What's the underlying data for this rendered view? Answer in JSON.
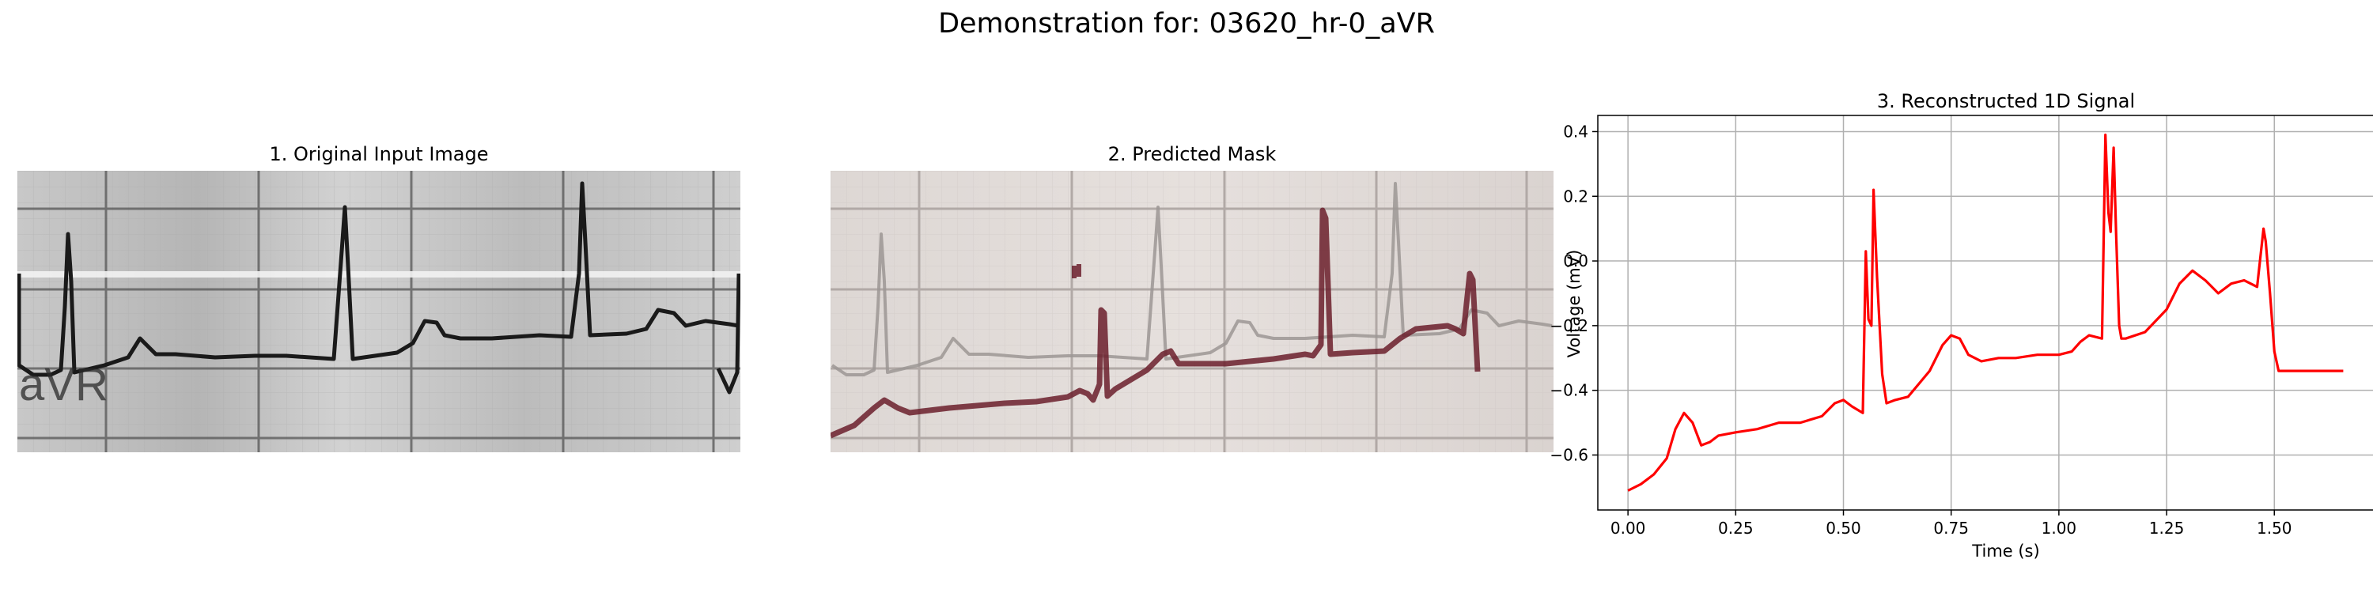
{
  "figure": {
    "suptitle": "Demonstration for: 03620_hr-0_aVR"
  },
  "panels": {
    "original": {
      "title": "1. Original Input Image",
      "lead_label": "aVR"
    },
    "mask": {
      "title": "2. Predicted Mask"
    },
    "signal": {
      "title": "3. Reconstructed 1D Signal"
    }
  },
  "colors": {
    "signal_line": "#ff0000",
    "mask_trace": "#6b1f2b",
    "ecg_trace": "#1a1a1a",
    "grid": "#b0b0b0"
  },
  "chart_data": {
    "type": "line",
    "title": "3. Reconstructed 1D Signal",
    "xlabel": "Time (s)",
    "ylabel": "Voltage (mV)",
    "xlim": [
      -0.07,
      1.74
    ],
    "ylim": [
      -0.77,
      0.45
    ],
    "xticks": [
      0.0,
      0.25,
      0.5,
      0.75,
      1.0,
      1.25,
      1.5
    ],
    "xtick_labels": [
      "0.00",
      "0.25",
      "0.50",
      "0.75",
      "1.00",
      "1.25",
      "1.50"
    ],
    "yticks": [
      -0.6,
      -0.4,
      -0.2,
      0.0,
      0.2,
      0.4
    ],
    "ytick_labels": [
      "−0.6",
      "−0.4",
      "−0.2",
      "0.0",
      "0.2",
      "0.4"
    ],
    "grid": true,
    "series": [
      {
        "color": "#ff0000",
        "x": [
          0.0,
          0.03,
          0.06,
          0.09,
          0.11,
          0.13,
          0.15,
          0.17,
          0.19,
          0.21,
          0.25,
          0.3,
          0.35,
          0.4,
          0.45,
          0.48,
          0.5,
          0.52,
          0.545,
          0.552,
          0.558,
          0.565,
          0.57,
          0.578,
          0.59,
          0.6,
          0.62,
          0.65,
          0.7,
          0.73,
          0.75,
          0.77,
          0.79,
          0.82,
          0.86,
          0.9,
          0.95,
          1.0,
          1.03,
          1.05,
          1.07,
          1.1,
          1.108,
          1.115,
          1.12,
          1.127,
          1.133,
          1.14,
          1.145,
          1.155,
          1.2,
          1.25,
          1.28,
          1.31,
          1.34,
          1.37,
          1.4,
          1.43,
          1.46,
          1.475,
          1.48,
          1.49,
          1.5,
          1.51,
          1.55,
          1.6,
          1.66
        ],
        "y": [
          -0.71,
          -0.69,
          -0.66,
          -0.61,
          -0.52,
          -0.47,
          -0.5,
          -0.57,
          -0.56,
          -0.54,
          -0.53,
          -0.52,
          -0.5,
          -0.5,
          -0.48,
          -0.44,
          -0.43,
          -0.45,
          -0.47,
          0.03,
          -0.18,
          -0.2,
          0.22,
          -0.05,
          -0.35,
          -0.44,
          -0.43,
          -0.42,
          -0.34,
          -0.26,
          -0.23,
          -0.24,
          -0.29,
          -0.31,
          -0.3,
          -0.3,
          -0.29,
          -0.29,
          -0.28,
          -0.25,
          -0.23,
          -0.24,
          0.39,
          0.15,
          0.09,
          0.35,
          0.08,
          -0.2,
          -0.24,
          -0.24,
          -0.22,
          -0.15,
          -0.07,
          -0.03,
          -0.06,
          -0.1,
          -0.07,
          -0.06,
          -0.08,
          0.1,
          0.06,
          -0.1,
          -0.28,
          -0.34,
          -0.34,
          -0.34,
          -0.34
        ]
      }
    ]
  }
}
